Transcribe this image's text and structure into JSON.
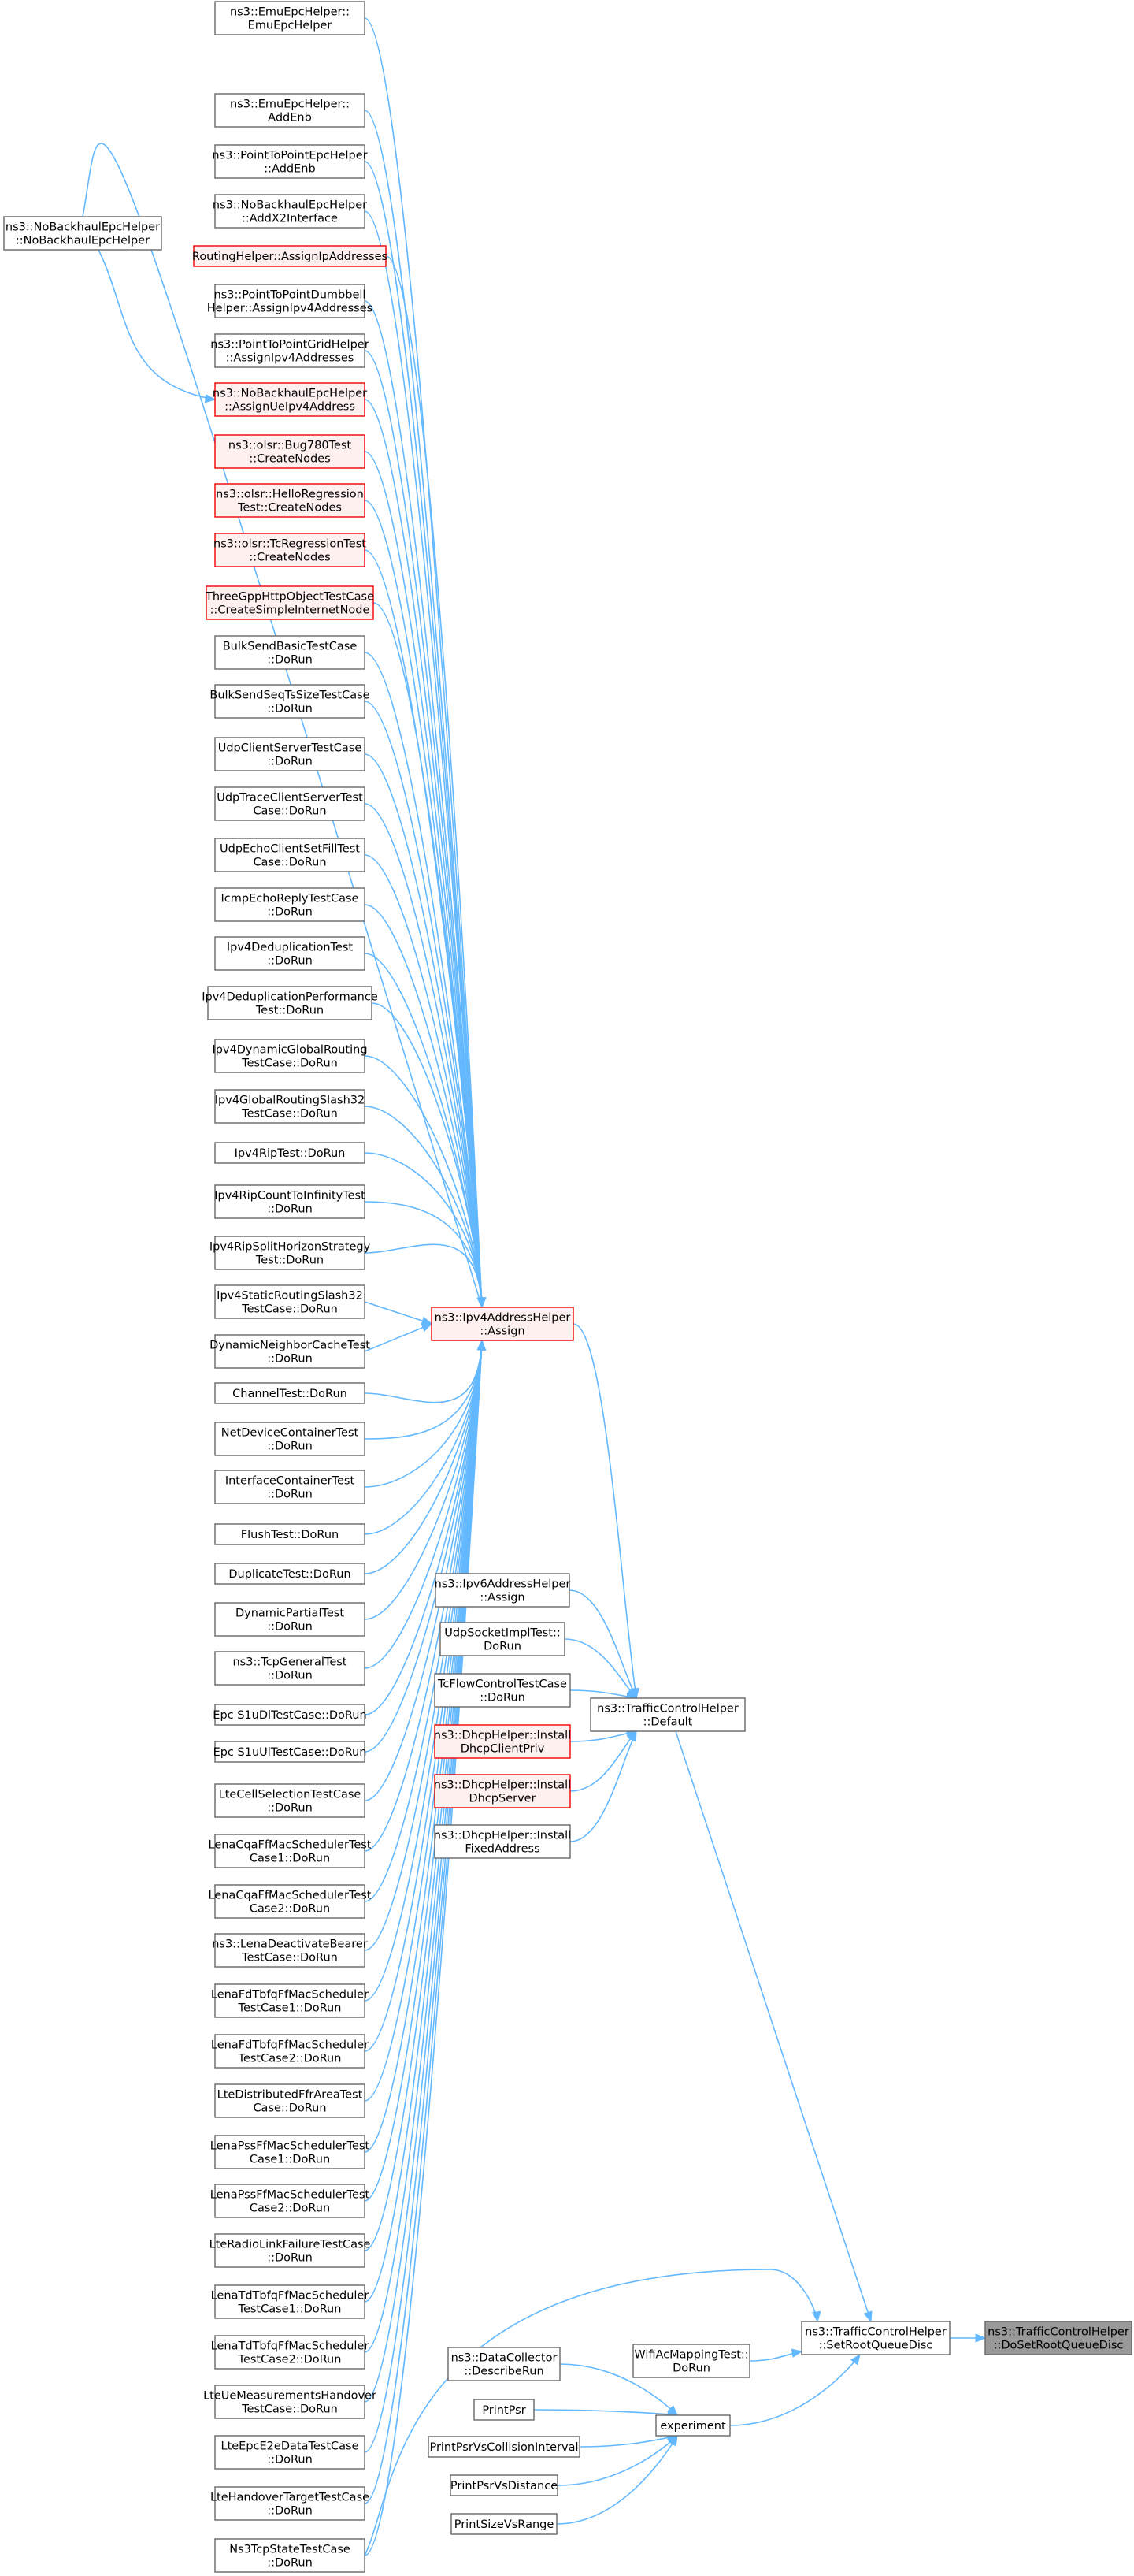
{
  "nodes": [
    {
      "id": "n01",
      "lines": [
        "ns3::EmuEpcHelper::",
        "EmuEpcHelper"
      ]
    },
    {
      "id": "n02",
      "lines": [
        "ns3::EmuEpcHelper::",
        "AddEnb"
      ]
    },
    {
      "id": "n03",
      "lines": [
        "ns3::PointToPointEpcHelper",
        "::AddEnb"
      ]
    },
    {
      "id": "n04",
      "lines": [
        "ns3::NoBackhaulEpcHelper",
        "::AddX2Interface"
      ]
    },
    {
      "id": "n05",
      "lines": [
        "RoutingHelper::AssignIpAddresses"
      ],
      "truncated": true
    },
    {
      "id": "n06",
      "lines": [
        "ns3::PointToPointDumbbell",
        "Helper::AssignIpv4Addresses"
      ]
    },
    {
      "id": "n07",
      "lines": [
        "ns3::PointToPointGridHelper",
        "::AssignIpv4Addresses"
      ]
    },
    {
      "id": "n08",
      "lines": [
        "ns3::NoBackhaulEpcHelper",
        "::AssignUeIpv4Address"
      ],
      "truncated": true
    },
    {
      "id": "n09",
      "lines": [
        "ns3::olsr::Bug780Test",
        "::CreateNodes"
      ],
      "truncated": true
    },
    {
      "id": "n10",
      "lines": [
        "ns3::olsr::HelloRegression",
        "Test::CreateNodes"
      ],
      "truncated": true
    },
    {
      "id": "n11",
      "lines": [
        "ns3::olsr::TcRegressionTest",
        "::CreateNodes"
      ],
      "truncated": true
    },
    {
      "id": "n12",
      "lines": [
        "ThreeGppHttpObjectTestCase",
        "::CreateSimpleInternetNode"
      ],
      "truncated": true
    },
    {
      "id": "n13",
      "lines": [
        "BulkSendBasicTestCase",
        "::DoRun"
      ]
    },
    {
      "id": "n14",
      "lines": [
        "BulkSendSeqTsSizeTestCase",
        "::DoRun"
      ]
    },
    {
      "id": "n15",
      "lines": [
        "UdpClientServerTestCase",
        "::DoRun"
      ]
    },
    {
      "id": "n16",
      "lines": [
        "UdpTraceClientServerTest",
        "Case::DoRun"
      ]
    },
    {
      "id": "n17",
      "lines": [
        "UdpEchoClientSetFillTest",
        "Case::DoRun"
      ]
    },
    {
      "id": "n18",
      "lines": [
        "IcmpEchoReplyTestCase",
        "::DoRun"
      ]
    },
    {
      "id": "n19",
      "lines": [
        "Ipv4DeduplicationTest",
        "::DoRun"
      ]
    },
    {
      "id": "n20",
      "lines": [
        "Ipv4DeduplicationPerformance",
        "Test::DoRun"
      ]
    },
    {
      "id": "n21",
      "lines": [
        "Ipv4DynamicGlobalRouting",
        "TestCase::DoRun"
      ]
    },
    {
      "id": "n22",
      "lines": [
        "Ipv4GlobalRoutingSlash32",
        "TestCase::DoRun"
      ]
    },
    {
      "id": "n23",
      "lines": [
        "Ipv4RipTest::DoRun"
      ]
    },
    {
      "id": "n24",
      "lines": [
        "Ipv4RipCountToInfinityTest",
        "::DoRun"
      ]
    },
    {
      "id": "n25",
      "lines": [
        "Ipv4RipSplitHorizonStrategy",
        "Test::DoRun"
      ]
    },
    {
      "id": "n26",
      "lines": [
        "Ipv4StaticRoutingSlash32",
        "TestCase::DoRun"
      ]
    },
    {
      "id": "n27",
      "lines": [
        "DynamicNeighborCacheTest",
        "::DoRun"
      ]
    },
    {
      "id": "n28",
      "lines": [
        "ChannelTest::DoRun"
      ]
    },
    {
      "id": "n29",
      "lines": [
        "NetDeviceContainerTest",
        "::DoRun"
      ]
    },
    {
      "id": "n30",
      "lines": [
        "InterfaceContainerTest",
        "::DoRun"
      ]
    },
    {
      "id": "n31",
      "lines": [
        "FlushTest::DoRun"
      ]
    },
    {
      "id": "n32",
      "lines": [
        "DuplicateTest::DoRun"
      ]
    },
    {
      "id": "n33",
      "lines": [
        "DynamicPartialTest",
        "::DoRun"
      ]
    },
    {
      "id": "n34",
      "lines": [
        "ns3::TcpGeneralTest",
        "::DoRun"
      ]
    },
    {
      "id": "n35",
      "lines": [
        "Epc S1uDlTestCase::DoRun"
      ]
    },
    {
      "id": "n36",
      "lines": [
        "Epc S1uUlTestCase::DoRun"
      ]
    },
    {
      "id": "n37",
      "lines": [
        "LteCellSelectionTestCase",
        "::DoRun"
      ]
    },
    {
      "id": "n38",
      "lines": [
        "LenaCqaFfMacSchedulerTest",
        "Case1::DoRun"
      ]
    },
    {
      "id": "n39",
      "lines": [
        "LenaCqaFfMacSchedulerTest",
        "Case2::DoRun"
      ]
    },
    {
      "id": "n40",
      "lines": [
        "ns3::LenaDeactivateBearer",
        "TestCase::DoRun"
      ]
    },
    {
      "id": "n41",
      "lines": [
        "LenaFdTbfqFfMacScheduler",
        "TestCase1::DoRun"
      ]
    },
    {
      "id": "n42",
      "lines": [
        "LenaFdTbfqFfMacScheduler",
        "TestCase2::DoRun"
      ]
    },
    {
      "id": "n43",
      "lines": [
        "LteDistributedFfrAreaTest",
        "Case::DoRun"
      ]
    },
    {
      "id": "n44",
      "lines": [
        "LenaPssFfMacSchedulerTest",
        "Case1::DoRun"
      ]
    },
    {
      "id": "n45",
      "lines": [
        "LenaPssFfMacSchedulerTest",
        "Case2::DoRun"
      ]
    },
    {
      "id": "n46",
      "lines": [
        "LteRadioLinkFailureTestCase",
        "::DoRun"
      ]
    },
    {
      "id": "n47",
      "lines": [
        "LenaTdTbfqFfMacScheduler",
        "TestCase1::DoRun"
      ]
    },
    {
      "id": "n48",
      "lines": [
        "LenaTdTbfqFfMacScheduler",
        "TestCase2::DoRun"
      ]
    },
    {
      "id": "n49",
      "lines": [
        "LteUeMeasurementsHandover",
        "TestCase::DoRun"
      ]
    },
    {
      "id": "n50",
      "lines": [
        "LteEpcE2eDataTestCase",
        "::DoRun"
      ]
    },
    {
      "id": "n51",
      "lines": [
        "LteHandoverTargetTestCase",
        "::DoRun"
      ]
    },
    {
      "id": "n52",
      "lines": [
        "Ns3TcpStateTestCase",
        "::DoRun"
      ]
    },
    {
      "id": "nb",
      "lines": [
        "ns3::NoBackhaulEpcHelper",
        "::NoBackhaulEpcHelper"
      ]
    },
    {
      "id": "ipv4",
      "lines": [
        "ns3::Ipv4AddressHelper",
        "::Assign"
      ],
      "truncated": true
    },
    {
      "id": "ipv6",
      "lines": [
        "ns3::Ipv6AddressHelper",
        "::Assign"
      ]
    },
    {
      "id": "udpsock",
      "lines": [
        "UdpSocketImplTest::",
        "DoRun"
      ]
    },
    {
      "id": "tcflow",
      "lines": [
        "TcFlowControlTestCase",
        "::DoRun"
      ]
    },
    {
      "id": "dhcpc",
      "lines": [
        "ns3::DhcpHelper::Install",
        "DhcpClientPriv"
      ],
      "truncated": true
    },
    {
      "id": "dhcps",
      "lines": [
        "ns3::DhcpHelper::Install",
        "DhcpServer"
      ],
      "truncated": true
    },
    {
      "id": "dhcpf",
      "lines": [
        "ns3::DhcpHelper::Install",
        "FixedAddress"
      ]
    },
    {
      "id": "tcdef",
      "lines": [
        "ns3::TrafficControlHelper",
        "::Default"
      ]
    },
    {
      "id": "datacoll",
      "lines": [
        "ns3::DataCollector",
        "::DescribeRun"
      ]
    },
    {
      "id": "printpsr",
      "lines": [
        "PrintPsr"
      ]
    },
    {
      "id": "printcoll",
      "lines": [
        "PrintPsrVsCollisionInterval"
      ]
    },
    {
      "id": "printdist",
      "lines": [
        "PrintPsrVsDistance"
      ]
    },
    {
      "id": "printsize",
      "lines": [
        "PrintSizeVsRange"
      ]
    },
    {
      "id": "experiment",
      "lines": [
        "experiment"
      ]
    },
    {
      "id": "wifiac",
      "lines": [
        "WifiAcMappingTest::",
        "DoRun"
      ]
    },
    {
      "id": "setroot",
      "lines": [
        "ns3::TrafficControlHelper",
        "::SetRootQueueDisc"
      ]
    },
    {
      "id": "target",
      "lines": [
        "ns3::TrafficControlHelper",
        "::DoSetRootQueueDisc"
      ],
      "current": true
    }
  ],
  "edges": [
    [
      "n01",
      "ipv4"
    ],
    [
      "n02",
      "ipv4"
    ],
    [
      "n03",
      "ipv4"
    ],
    [
      "n04",
      "ipv4"
    ],
    [
      "n05",
      "ipv4"
    ],
    [
      "n06",
      "ipv4"
    ],
    [
      "n07",
      "ipv4"
    ],
    [
      "n08",
      "ipv4"
    ],
    [
      "n09",
      "ipv4"
    ],
    [
      "n10",
      "ipv4"
    ],
    [
      "n11",
      "ipv4"
    ],
    [
      "n12",
      "ipv4"
    ],
    [
      "n13",
      "ipv4"
    ],
    [
      "n14",
      "ipv4"
    ],
    [
      "n15",
      "ipv4"
    ],
    [
      "n16",
      "ipv4"
    ],
    [
      "n17",
      "ipv4"
    ],
    [
      "n18",
      "ipv4"
    ],
    [
      "n19",
      "ipv4"
    ],
    [
      "n20",
      "ipv4"
    ],
    [
      "n21",
      "ipv4"
    ],
    [
      "n22",
      "ipv4"
    ],
    [
      "n23",
      "ipv4"
    ],
    [
      "n24",
      "ipv4"
    ],
    [
      "n25",
      "ipv4"
    ],
    [
      "n26",
      "ipv4"
    ],
    [
      "n27",
      "ipv4"
    ],
    [
      "n28",
      "ipv4"
    ],
    [
      "n29",
      "ipv4"
    ],
    [
      "n30",
      "ipv4"
    ],
    [
      "n31",
      "ipv4"
    ],
    [
      "n32",
      "ipv4"
    ],
    [
      "n33",
      "ipv4"
    ],
    [
      "n34",
      "ipv4"
    ],
    [
      "n35",
      "ipv4"
    ],
    [
      "n36",
      "ipv4"
    ],
    [
      "n37",
      "ipv4"
    ],
    [
      "n38",
      "ipv4"
    ],
    [
      "n39",
      "ipv4"
    ],
    [
      "n40",
      "ipv4"
    ],
    [
      "n41",
      "ipv4"
    ],
    [
      "n42",
      "ipv4"
    ],
    [
      "n43",
      "ipv4"
    ],
    [
      "n44",
      "ipv4"
    ],
    [
      "n45",
      "ipv4"
    ],
    [
      "n46",
      "ipv4"
    ],
    [
      "n47",
      "ipv4"
    ],
    [
      "n48",
      "ipv4"
    ],
    [
      "n49",
      "ipv4"
    ],
    [
      "n50",
      "ipv4"
    ],
    [
      "n51",
      "ipv4"
    ],
    [
      "n52",
      "ipv4"
    ],
    [
      "nb",
      "ipv4"
    ],
    [
      "nb",
      "n08"
    ],
    [
      "ipv4",
      "tcdef"
    ],
    [
      "ipv6",
      "tcdef"
    ],
    [
      "udpsock",
      "tcdef"
    ],
    [
      "tcflow",
      "tcdef"
    ],
    [
      "dhcpc",
      "tcdef"
    ],
    [
      "dhcps",
      "tcdef"
    ],
    [
      "dhcpf",
      "tcdef"
    ],
    [
      "tcdef",
      "setroot"
    ],
    [
      "n52",
      "setroot"
    ],
    [
      "wifiac",
      "setroot"
    ],
    [
      "experiment",
      "setroot"
    ],
    [
      "datacoll",
      "experiment"
    ],
    [
      "printpsr",
      "experiment"
    ],
    [
      "printcoll",
      "experiment"
    ],
    [
      "printdist",
      "experiment"
    ],
    [
      "printsize",
      "experiment"
    ],
    [
      "setroot",
      "target"
    ]
  ],
  "colors": {
    "edge": "#63b8ff",
    "node_border": "#666666",
    "truncated_border": "#f20000",
    "truncated_fill": "#fff0f0",
    "current_fill": "#999999"
  }
}
